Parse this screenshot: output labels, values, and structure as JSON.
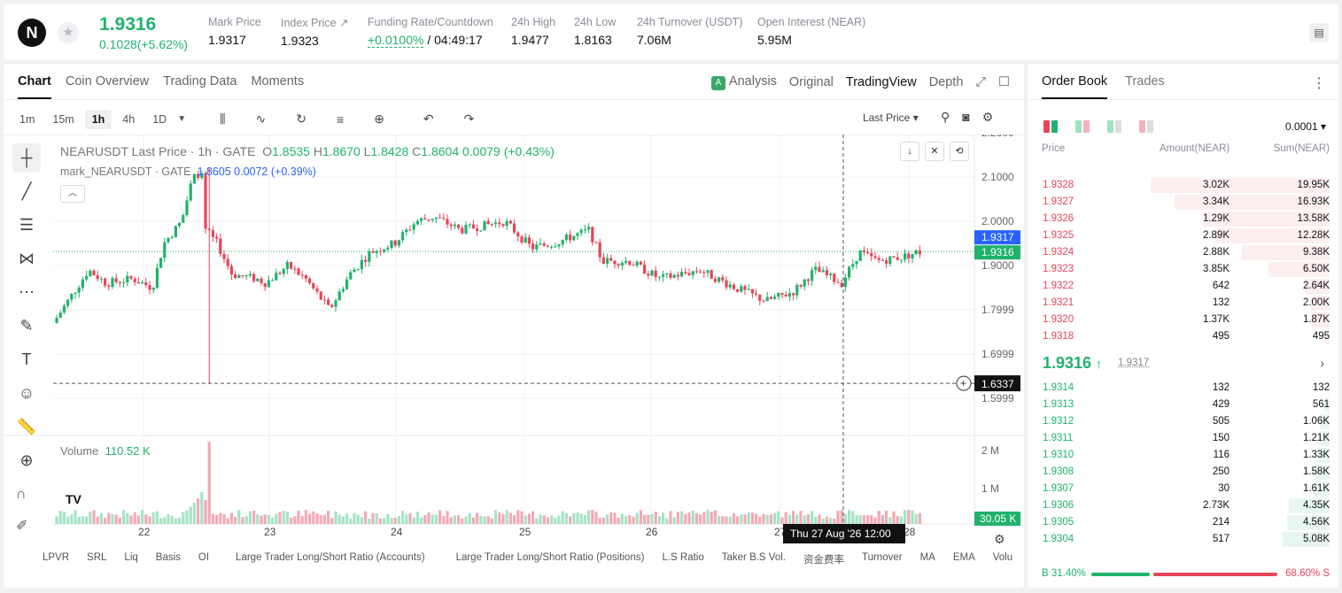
{
  "header": {
    "logo": "N",
    "price": "1.9316",
    "change": "0.1028(+5.62%)",
    "stats": [
      {
        "label": "Mark Price",
        "value": "1.9317"
      },
      {
        "label": "Index Price ↗",
        "value": "1.9323"
      },
      {
        "label": "Funding Rate/Countdown",
        "value_a": "+0.0100%",
        "value_b": "/ 04:49:17"
      },
      {
        "label": "24h High",
        "value": "1.9477"
      },
      {
        "label": "24h Low",
        "value": "1.8163"
      },
      {
        "label": "24h Turnover (USDT)",
        "value": "7.06M"
      },
      {
        "label": "Open Interest (NEAR)",
        "value": "5.95M"
      }
    ]
  },
  "chart_tabs": [
    "Chart",
    "Coin Overview",
    "Trading Data",
    "Moments"
  ],
  "chart_tabs_right": {
    "analysis": "Analysis",
    "original": "Original",
    "tradingview": "TradingView",
    "depth": "Depth"
  },
  "intervals": [
    "1m",
    "15m",
    "1h",
    "4h",
    "1D"
  ],
  "price_type": "Last Price",
  "legend": {
    "symbol": "NEARUSDT Last Price · 1h · GATE",
    "o": "1.8535",
    "h": "1.8670",
    "l": "1.8428",
    "c": "1.8604",
    "chg": "0.0079 (+0.43%)",
    "mark": "mark_NEARUSDT · GATE",
    "mark_val": "1.8605",
    "mark_chg": "0.0072 (+0.39%)"
  },
  "volume": {
    "label": "Volume",
    "value": "110.52 K"
  },
  "axis": {
    "price_ticks": [
      "2.2000",
      "2.1000",
      "2.0000",
      "1.9000",
      "1.7999",
      "1.6999",
      "1.5999"
    ],
    "vol_ticks": [
      "2 M",
      "1 M"
    ],
    "dates": [
      "22",
      "23",
      "24",
      "25",
      "26",
      "27",
      "28"
    ],
    "crosshair_date": "Thu 27 Aug '26",
    "crosshair_time": "12:00",
    "mark_tag": "1.9317",
    "last_tag": "1.9316",
    "cross_tag": "1.6337",
    "vol_tag": "30.05 K"
  },
  "bottom_tabs": [
    "LPVR",
    "SRL",
    "Liq",
    "Basis",
    "OI",
    "Large Trader Long/Short Ratio (Accounts)",
    "Large Trader Long/Short Ratio (Positions)",
    "L.S Ratio",
    "Taker B.S Vol.",
    "资金费率",
    "Turnover",
    "MA",
    "EMA",
    "Volu"
  ],
  "orderbook": {
    "tabs": [
      "Order Book",
      "Trades"
    ],
    "precision": "0.0001",
    "headers": {
      "price": "Price",
      "amount": "Amount(NEAR)",
      "sum": "Sum(NEAR)"
    },
    "asks": [
      {
        "price": "1.9328",
        "amount": "3.02K",
        "sum": "19.95K",
        "depth": 0.88
      },
      {
        "price": "1.9327",
        "amount": "3.34K",
        "sum": "16.93K",
        "depth": 0.76
      },
      {
        "price": "1.9326",
        "amount": "1.29K",
        "sum": "13.58K",
        "depth": 0.62
      },
      {
        "price": "1.9325",
        "amount": "2.89K",
        "sum": "12.28K",
        "depth": 0.56
      },
      {
        "price": "1.9324",
        "amount": "2.88K",
        "sum": "9.38K",
        "depth": 0.43
      },
      {
        "price": "1.9323",
        "amount": "3.85K",
        "sum": "6.50K",
        "depth": 0.3
      },
      {
        "price": "1.9322",
        "amount": "642",
        "sum": "2.64K",
        "depth": 0.12
      },
      {
        "price": "1.9321",
        "amount": "132",
        "sum": "2.00K",
        "depth": 0.09
      },
      {
        "price": "1.9320",
        "amount": "1.37K",
        "sum": "1.87K",
        "depth": 0.085
      },
      {
        "price": "1.9318",
        "amount": "495",
        "sum": "495",
        "depth": 0.02
      }
    ],
    "mid": "1.9316",
    "mid_arrow": "↑",
    "mid_mark": "1.9317",
    "bids": [
      {
        "price": "1.9314",
        "amount": "132",
        "sum": "132",
        "depth": 0.006
      },
      {
        "price": "1.9313",
        "amount": "429",
        "sum": "561",
        "depth": 0.025
      },
      {
        "price": "1.9312",
        "amount": "505",
        "sum": "1.06K",
        "depth": 0.048
      },
      {
        "price": "1.9311",
        "amount": "150",
        "sum": "1.21K",
        "depth": 0.055
      },
      {
        "price": "1.9310",
        "amount": "116",
        "sum": "1.33K",
        "depth": 0.06
      },
      {
        "price": "1.9308",
        "amount": "250",
        "sum": "1.58K",
        "depth": 0.072
      },
      {
        "price": "1.9307",
        "amount": "30",
        "sum": "1.61K",
        "depth": 0.073
      },
      {
        "price": "1.9306",
        "amount": "2.73K",
        "sum": "4.35K",
        "depth": 0.2
      },
      {
        "price": "1.9305",
        "amount": "214",
        "sum": "4.56K",
        "depth": 0.21
      },
      {
        "price": "1.9304",
        "amount": "517",
        "sum": "5.08K",
        "depth": 0.23
      }
    ],
    "buy_ratio": "B 31.40%",
    "sell_ratio": "68.60% S",
    "buy_fraction": 0.314
  },
  "colors": {
    "up": "#20b26c",
    "down": "#e8455a"
  }
}
